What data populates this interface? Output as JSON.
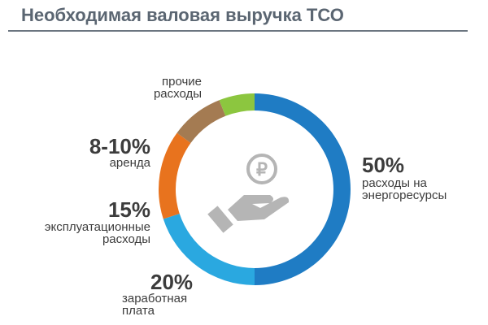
{
  "chart_data": {
    "type": "donut",
    "title": "Необходимая валовая выручка ТСО",
    "categories": [
      "расходы на\nэнергоресурсы",
      "заработная\nплата",
      "эксплуатационные\nрасходы",
      "аренда",
      "прочие\nрасходы"
    ],
    "values": [
      50,
      20,
      15,
      9,
      6
    ],
    "value_labels": [
      "50%",
      "20%",
      "15%",
      "8-10%",
      null
    ],
    "colors": [
      "#1f7cc4",
      "#2aa8e0",
      "#e8731e",
      "#a47b52",
      "#8cc63f"
    ]
  }
}
